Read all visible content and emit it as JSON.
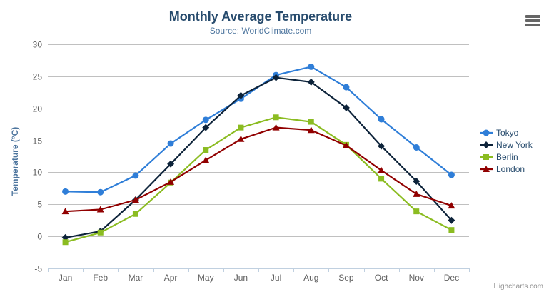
{
  "header": {
    "title": "Monthly Average Temperature",
    "subtitle": "Source: WorldClimate.com"
  },
  "toolbar": {
    "export_menu_icon": "hamburger-icon"
  },
  "credits": {
    "label": "Highcharts.com"
  },
  "colors": {
    "background": "#ffffff",
    "title": "#274b6d",
    "subtitle": "#4d759e",
    "axis_title": "#4d759e",
    "axis_label": "#606060",
    "gridline": "#c0c0c0",
    "axis_line": "#c0d0e0",
    "tick": "#c0d0e0",
    "legend_text": "#274b6d",
    "credits_text": "#909090",
    "hamburger": "#666666"
  },
  "chart_data": {
    "type": "line",
    "title": "Monthly Average Temperature",
    "subtitle": "Source: WorldClimate.com",
    "xlabel": "",
    "ylabel": "Temperature (°C)",
    "categories": [
      "Jan",
      "Feb",
      "Mar",
      "Apr",
      "May",
      "Jun",
      "Jul",
      "Aug",
      "Sep",
      "Oct",
      "Nov",
      "Dec"
    ],
    "ylim": [
      -5,
      30
    ],
    "ytick_interval": 5,
    "ytick_labels": [
      "30",
      "25",
      "20",
      "15",
      "10",
      "5",
      "0",
      "-5"
    ],
    "grid": "horizontal",
    "legend_position": "right",
    "series": [
      {
        "name": "Tokyo",
        "color": "#2f7ed8",
        "marker": "circle",
        "values": [
          7.0,
          6.9,
          9.5,
          14.5,
          18.2,
          21.5,
          25.2,
          26.5,
          23.3,
          18.3,
          13.9,
          9.6
        ]
      },
      {
        "name": "New York",
        "color": "#0d233a",
        "marker": "diamond",
        "values": [
          -0.2,
          0.8,
          5.7,
          11.3,
          17.0,
          22.0,
          24.8,
          24.1,
          20.1,
          14.1,
          8.6,
          2.5
        ]
      },
      {
        "name": "Berlin",
        "color": "#8bbc21",
        "marker": "square",
        "values": [
          -0.9,
          0.6,
          3.5,
          8.4,
          13.5,
          17.0,
          18.6,
          17.9,
          14.3,
          9.0,
          3.9,
          1.0
        ]
      },
      {
        "name": "London",
        "color": "#910000",
        "marker": "triangle",
        "values": [
          3.9,
          4.2,
          5.7,
          8.5,
          11.9,
          15.2,
          17.0,
          16.6,
          14.2,
          10.3,
          6.6,
          4.8
        ]
      }
    ]
  }
}
